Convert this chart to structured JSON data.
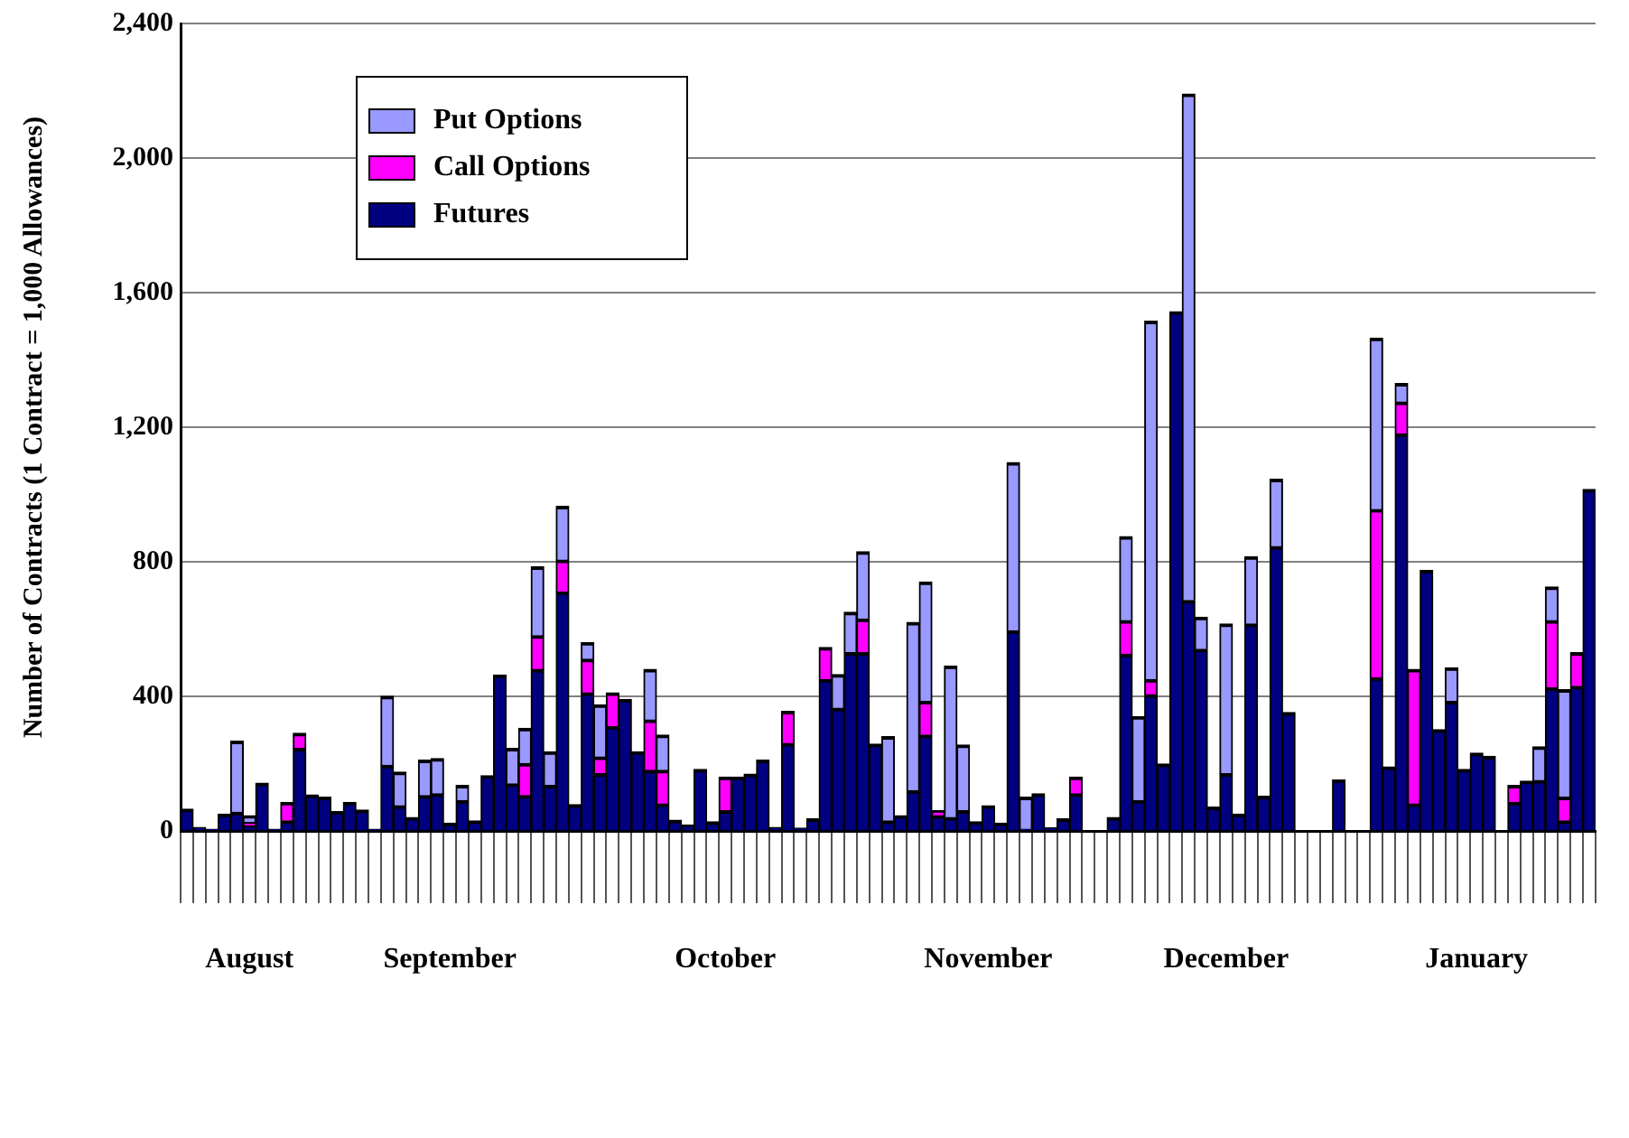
{
  "chart_data": {
    "type": "bar",
    "stacked": true,
    "ylabel": "Number of Contracts (1 Contract = 1,000 Allowances)",
    "categories": [
      null,
      null,
      null,
      null,
      null,
      "August",
      null,
      null,
      null,
      null,
      null,
      null,
      null,
      null,
      null,
      null,
      null,
      null,
      null,
      null,
      null,
      "September",
      null,
      null,
      null,
      null,
      null,
      null,
      null,
      null,
      null,
      null,
      null,
      null,
      null,
      null,
      null,
      null,
      null,
      null,
      null,
      null,
      null,
      "October",
      null,
      null,
      null,
      null,
      null,
      null,
      null,
      null,
      null,
      null,
      null,
      null,
      null,
      null,
      null,
      null,
      null,
      null,
      null,
      null,
      "November",
      null,
      null,
      null,
      null,
      null,
      null,
      null,
      null,
      null,
      null,
      null,
      null,
      null,
      null,
      null,
      null,
      null,
      null,
      "December",
      null,
      null,
      null,
      null,
      null,
      null,
      null,
      null,
      null,
      null,
      null,
      null,
      null,
      null,
      null,
      null,
      null,
      null,
      null,
      "January",
      null,
      null,
      null,
      null,
      null,
      null,
      null,
      null,
      null
    ],
    "series": [
      {
        "name": "Futures",
        "color": "#000080",
        "values": [
          65,
          10,
          5,
          50,
          55,
          15,
          142,
          5,
          30,
          245,
          107,
          100,
          57,
          85,
          62,
          5,
          195,
          75,
          40,
          105,
          110,
          23,
          90,
          30,
          164,
          463,
          140,
          105,
          480,
          135,
          710,
          78,
          410,
          170,
          310,
          391,
          235,
          180,
          80,
          32,
          18,
          183,
          27,
          60,
          160,
          169,
          210,
          10,
          260,
          8,
          36,
          450,
          365,
          530,
          530,
          258,
          30,
          45,
          120,
          285,
          45,
          40,
          60,
          27,
          75,
          23,
          595,
          5,
          110,
          9,
          36,
          110,
          null,
          null,
          40,
          525,
          90,
          405,
          199,
          1543,
          685,
          540,
          71,
          170,
          50,
          615,
          103,
          845,
          352,
          null,
          null,
          null,
          151,
          null,
          null,
          455,
          190,
          1180,
          80,
          774,
          301,
          385,
          183,
          231,
          222,
          null,
          85,
          148,
          150,
          425,
          30,
          430,
          1015
        ]
      },
      {
        "name": "Call Options",
        "color": "#ff00ff",
        "values": [
          null,
          null,
          null,
          null,
          null,
          10,
          null,
          null,
          55,
          45,
          null,
          null,
          null,
          null,
          null,
          null,
          null,
          null,
          null,
          null,
          null,
          null,
          null,
          null,
          null,
          null,
          null,
          95,
          100,
          null,
          95,
          null,
          100,
          50,
          100,
          null,
          null,
          150,
          100,
          null,
          null,
          null,
          null,
          100,
          null,
          null,
          null,
          null,
          95,
          null,
          null,
          95,
          null,
          null,
          100,
          null,
          null,
          null,
          null,
          100,
          15,
          null,
          null,
          null,
          null,
          null,
          null,
          null,
          null,
          null,
          null,
          50,
          null,
          null,
          null,
          100,
          null,
          45,
          null,
          null,
          null,
          null,
          null,
          null,
          null,
          null,
          null,
          null,
          null,
          null,
          null,
          null,
          null,
          null,
          null,
          500,
          null,
          95,
          400,
          null,
          null,
          null,
          null,
          null,
          null,
          null,
          50,
          null,
          null,
          200,
          70,
          100,
          null
        ]
      },
      {
        "name": "Put Options",
        "color": "#9999ff",
        "values": [
          null,
          null,
          null,
          null,
          212,
          20,
          null,
          null,
          null,
          null,
          null,
          null,
          null,
          null,
          null,
          null,
          205,
          100,
          null,
          105,
          105,
          null,
          45,
          null,
          null,
          null,
          105,
          105,
          205,
          100,
          160,
          null,
          50,
          155,
          null,
          null,
          null,
          150,
          105,
          null,
          null,
          null,
          null,
          null,
          null,
          null,
          null,
          null,
          null,
          null,
          null,
          null,
          100,
          120,
          200,
          null,
          250,
          null,
          500,
          355,
          null,
          450,
          195,
          null,
          null,
          null,
          500,
          95,
          null,
          null,
          null,
          null,
          null,
          null,
          null,
          250,
          250,
          1065,
          null,
          null,
          1505,
          95,
          null,
          445,
          null,
          200,
          null,
          200,
          null,
          null,
          null,
          null,
          null,
          null,
          null,
          510,
          null,
          55,
          null,
          null,
          null,
          100,
          null,
          null,
          null,
          null,
          null,
          null,
          100,
          100,
          320,
          null,
          null
        ]
      }
    ],
    "ylim": [
      0,
      2400
    ],
    "yticks": [
      0,
      {
        "value": 400,
        "label": "400"
      },
      {
        "value": 800,
        "label": "800"
      },
      {
        "value": 1200,
        "label": "1,200"
      },
      {
        "value": 1600,
        "label": "1,600"
      },
      {
        "value": 2000,
        "label": "2,000"
      },
      {
        "value": 2400,
        "label": "2,400"
      }
    ],
    "grid": "y",
    "legend": "top left"
  }
}
